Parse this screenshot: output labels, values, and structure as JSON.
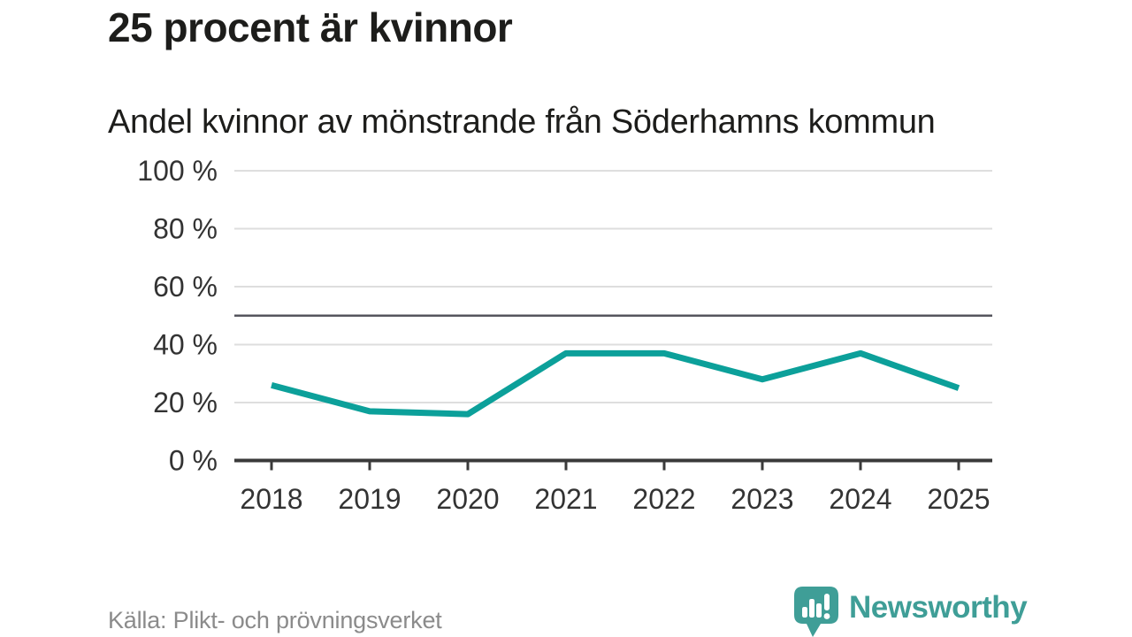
{
  "header": {
    "title": "25 procent är kvinnor",
    "subtitle": "Andel kvinnor av mönstrande från Söderhamns kommun"
  },
  "footer": {
    "source": "Källa: Plikt- och prövningsverket",
    "brand": "Newsworthy"
  },
  "colors": {
    "line": "#0ca09a",
    "brand": "#3f9e97",
    "grid": "#dedede",
    "reference": "#55555e",
    "axis": "#3a3a3a",
    "axis_text": "#333333",
    "text": "#1d1d1b",
    "muted": "#8b8b8b"
  },
  "chart_data": {
    "type": "line",
    "title": "25 procent är kvinnor",
    "subtitle": "Andel kvinnor av mönstrande från Söderhamns kommun",
    "categories": [
      "2018",
      "2019",
      "2020",
      "2021",
      "2022",
      "2023",
      "2024",
      "2025"
    ],
    "series": [
      {
        "name": "Andel kvinnor av mönstrande från Söderhamns kommun",
        "values": [
          26,
          17,
          16,
          37,
          37,
          28,
          37,
          25
        ]
      }
    ],
    "unit": "%",
    "ylim": [
      0,
      100
    ],
    "yticks": [
      0,
      20,
      40,
      60,
      80,
      100
    ],
    "ytick_suffix": " %",
    "reference_line": 50,
    "grid": "horizontal",
    "legend": "none",
    "source": "Källa: Plikt- och prövningsverket"
  }
}
